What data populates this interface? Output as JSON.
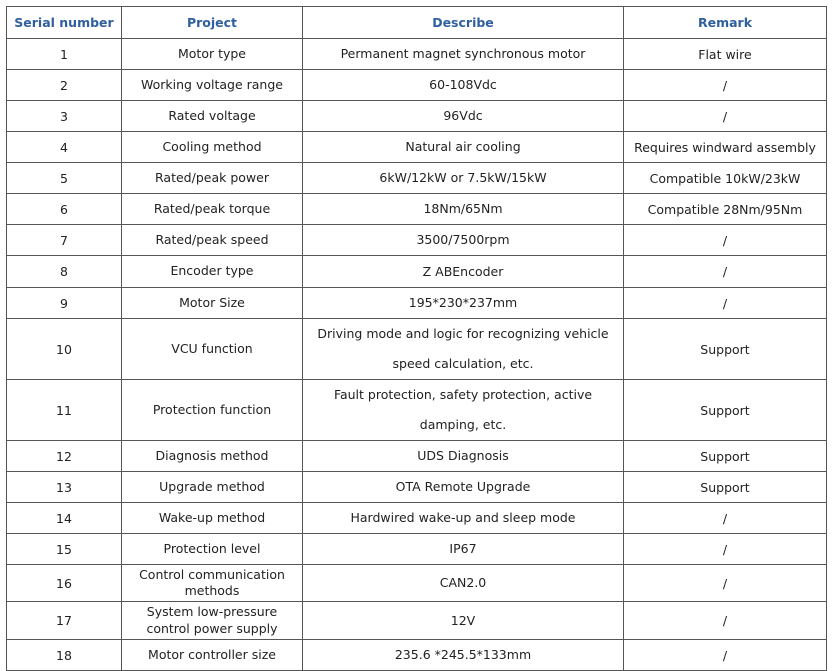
{
  "table": {
    "header": [
      "Serial number",
      "Project",
      "Describe",
      "Remark"
    ],
    "rows": [
      [
        "1",
        "Motor type",
        "Permanent magnet synchronous motor",
        "Flat wire"
      ],
      [
        "2",
        "Working voltage range",
        "60-108Vdc",
        "/"
      ],
      [
        "3",
        "Rated voltage",
        "96Vdc",
        "/"
      ],
      [
        "4",
        "Cooling method",
        "Natural air cooling",
        "Requires windward assembly"
      ],
      [
        "5",
        "Rated/peak power",
        "6kW/12kW or 7.5kW/15kW",
        "Compatible 10kW/23kW"
      ],
      [
        "6",
        "Rated/peak torque",
        "18Nm/65Nm",
        "Compatible 28Nm/95Nm"
      ],
      [
        "7",
        "Rated/peak speed",
        "3500/7500rpm",
        "/"
      ],
      [
        "8",
        "Encoder type",
        "Z ABEncoder",
        "/"
      ],
      [
        "9",
        "Motor Size",
        "195*230*237mm",
        "/"
      ],
      [
        "10",
        "VCU function",
        "Driving mode and logic for recognizing vehicle speed calculation, etc.",
        "Support"
      ],
      [
        "11",
        "Protection function",
        "Fault protection, safety protection, active damping, etc.",
        "Support"
      ],
      [
        "12",
        "Diagnosis method",
        "UDS Diagnosis",
        "Support"
      ],
      [
        "13",
        "Upgrade method",
        "OTA Remote Upgrade",
        "Support"
      ],
      [
        "14",
        "Wake-up method",
        "Hardwired wake-up and sleep mode",
        "/"
      ],
      [
        "15",
        "Protection level",
        "IP67",
        "/"
      ],
      [
        "16",
        "Control communication methods",
        "CAN2.0",
        "/"
      ],
      [
        "17",
        "System low-pressure control power supply",
        "12V",
        "/"
      ],
      [
        "18",
        "Motor controller size",
        "235.6 *245.5*133mm",
        "/"
      ]
    ]
  }
}
